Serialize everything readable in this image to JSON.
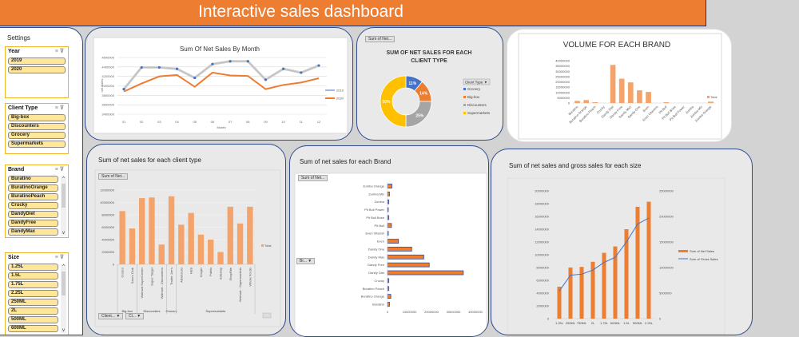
{
  "header": {
    "title": "Interactive sales dashboard"
  },
  "settings": {
    "title": "Settings",
    "slicers": [
      {
        "title": "Year",
        "items": [
          "2019",
          "2020"
        ]
      },
      {
        "title": "Client Type",
        "items": [
          "Big-box",
          "Discounters",
          "Grocery",
          "Supermarkets"
        ]
      },
      {
        "title": "Brand",
        "items": [
          "Buratino",
          "BuratinoOrange",
          "BuratinoPeach",
          "Crucky",
          "DandyDiet",
          "DandyFree",
          "DandyMax"
        ]
      },
      {
        "title": "Size",
        "items": [
          "1.25L",
          "1.5L",
          "1.75L",
          "2.25L",
          "250ML",
          "2L",
          "500ML",
          "600ML"
        ]
      }
    ],
    "icons": {
      "multiselect": "≡",
      "clear_filter": "⊽"
    }
  },
  "field_buttons": {
    "sum_of_net": "Sum of Net...",
    "client": "Client...",
    "cl": "Cl...",
    "br": "Br..."
  },
  "chart_data": [
    {
      "id": "monthly",
      "type": "line",
      "title": "Sum Of Net Sales By Month",
      "xlabel": "Month",
      "ylabel": "net Sales",
      "x": [
        "01",
        "02",
        "03",
        "04",
        "05",
        "06",
        "07",
        "08",
        "09",
        "10",
        "11",
        "12"
      ],
      "ylim": [
        3400000,
        4600000
      ],
      "yticks": [
        3400000,
        3600000,
        3800000,
        4000000,
        4200000,
        4400000,
        4600000
      ],
      "legend": "right",
      "series": [
        {
          "name": "2019",
          "color": "#4472c4",
          "values": [
            3930000,
            4390000,
            4390000,
            4360000,
            4170000,
            4460000,
            4520000,
            4520000,
            4130000,
            4360000,
            4280000,
            4430000
          ]
        },
        {
          "name": "2020",
          "color": "#ed7d31",
          "values": [
            3880000,
            4050000,
            4200000,
            4230000,
            3980000,
            4280000,
            4220000,
            4210000,
            3930000,
            4020000,
            4070000,
            4160000
          ]
        }
      ]
    },
    {
      "id": "client_donut",
      "type": "pie",
      "title": "SUM OF NET SALES FOR EACH CLIENT TYPE",
      "legend_title": "Client Type",
      "legend": "right",
      "slices": [
        {
          "label": "Grocery",
          "value": 11,
          "color": "#4472c4"
        },
        {
          "label": "Big-box",
          "value": 14,
          "color": "#ed7d31"
        },
        {
          "label": "Discounters",
          "value": 25,
          "color": "#a5a5a5"
        },
        {
          "label": "Supermarkets",
          "value": 50,
          "color": "#ffc000"
        }
      ]
    },
    {
      "id": "volume_brand",
      "type": "bar",
      "title": "VOLUME FOR EACH BRAND",
      "categories": [
        "Buratino",
        "Buratino Orange",
        "Buratino Peach",
        "Crucky",
        "Dandy Diet",
        "Dandy Free",
        "Dandy Max",
        "Dandy One",
        "Even",
        "Even Vitamins",
        "Pit Bull",
        "Pit Bull Brise",
        "Pit Bull Power",
        "Zumba",
        "Zumba Mix",
        "Zumba Orange"
      ],
      "values": [
        2000000,
        2800000,
        800000,
        0,
        36000000,
        23000000,
        19500000,
        12000000,
        10500000,
        0,
        800000,
        0,
        0,
        0,
        0,
        1300000
      ],
      "ylim": [
        0,
        40000000
      ],
      "yticks": [
        0,
        5000000,
        10000000,
        15000000,
        20000000,
        25000000,
        30000000,
        35000000,
        40000000
      ],
      "legend": [
        "Total"
      ],
      "color": "#f4a46a"
    },
    {
      "id": "client_bar",
      "type": "bar",
      "title": "Sum of net sales for each client type",
      "categories": [
        "Costco",
        "Sam's Club",
        "Walmart SuperCenter",
        "Super Target",
        "Walmart - Discounters",
        "Trader Joe's",
        "Albertsons",
        "HEB",
        "Kroger",
        "Publix",
        "Safeway",
        "ShopRite",
        "Walmart - Supermarkets",
        "Whole Foods"
      ],
      "groups": [
        {
          "name": "Big-box",
          "count": 2
        },
        {
          "name": "Discounters",
          "count": 3
        },
        {
          "name": "Grocery",
          "count": 1
        },
        {
          "name": "Supermarkets",
          "count": 8
        }
      ],
      "values": [
        8600000,
        5800000,
        10700000,
        10800000,
        3200000,
        11000000,
        6400000,
        8300000,
        4800000,
        4000000,
        2000000,
        9300000,
        6600000,
        9300000
      ],
      "ylim": [
        0,
        12000000
      ],
      "yticks": [
        0,
        2000000,
        4000000,
        6000000,
        8000000,
        10000000,
        12000000
      ],
      "legend": [
        "Total"
      ],
      "color": "#f4a46a"
    },
    {
      "id": "brand_hbar",
      "type": "bar",
      "orientation": "horizontal",
      "title": "Sum of net sales for each Brand",
      "categories": [
        "Buratino",
        "Buratino Orange",
        "Buratino Peach",
        "Crucky",
        "Dandy Diet",
        "Dandy Free",
        "Dandy Max",
        "Dandy One",
        "Even",
        "Even Vitamin",
        "Pit Bull",
        "Pit Bull Brise",
        "Pit Bull Power",
        "Zumba",
        "Zumba Mix",
        "Zumba Orange"
      ],
      "values": [
        900000,
        1500000,
        600000,
        600000,
        34500000,
        19000000,
        16500000,
        11000000,
        5000000,
        200000,
        1800000,
        600000,
        200000,
        600000,
        900000,
        2000000
      ],
      "xlim": [
        0,
        40000000
      ],
      "xticks": [
        0,
        10000000,
        20000000,
        30000000,
        40000000
      ],
      "color": "#ed7d31",
      "edge": "#2f4aa0"
    },
    {
      "id": "size_combo",
      "type": "bar",
      "title": "Sum of net sales and gross sales for each size",
      "categories": [
        "1.25L",
        "250ML",
        "750ML",
        "2L",
        "1.75L",
        "600ML",
        "1.5L",
        "500ML",
        "2.25L"
      ],
      "series": [
        {
          "name": "Sum of Net Sales",
          "type": "bar",
          "axis": "left",
          "color": "#ed7d31",
          "values": [
            5000000,
            8000000,
            8100000,
            8900000,
            10300000,
            11300000,
            14000000,
            17500000,
            18300000
          ]
        },
        {
          "name": "Sum of Gross Sales",
          "type": "line",
          "axis": "right",
          "color": "#4472c4",
          "values": [
            5400000,
            8500000,
            8700000,
            9500000,
            11000000,
            12000000,
            15000000,
            18500000,
            19700000
          ]
        }
      ],
      "ylim_left": [
        0,
        20000000
      ],
      "yticks_left": [
        0,
        2000000,
        4000000,
        6000000,
        8000000,
        10000000,
        12000000,
        14000000,
        16000000,
        18000000,
        20000000
      ],
      "ylim_right": [
        0,
        25000000
      ],
      "yticks_right": [
        0,
        5000000,
        10000000,
        15000000,
        20000000,
        25000000
      ],
      "legend": "right"
    }
  ]
}
